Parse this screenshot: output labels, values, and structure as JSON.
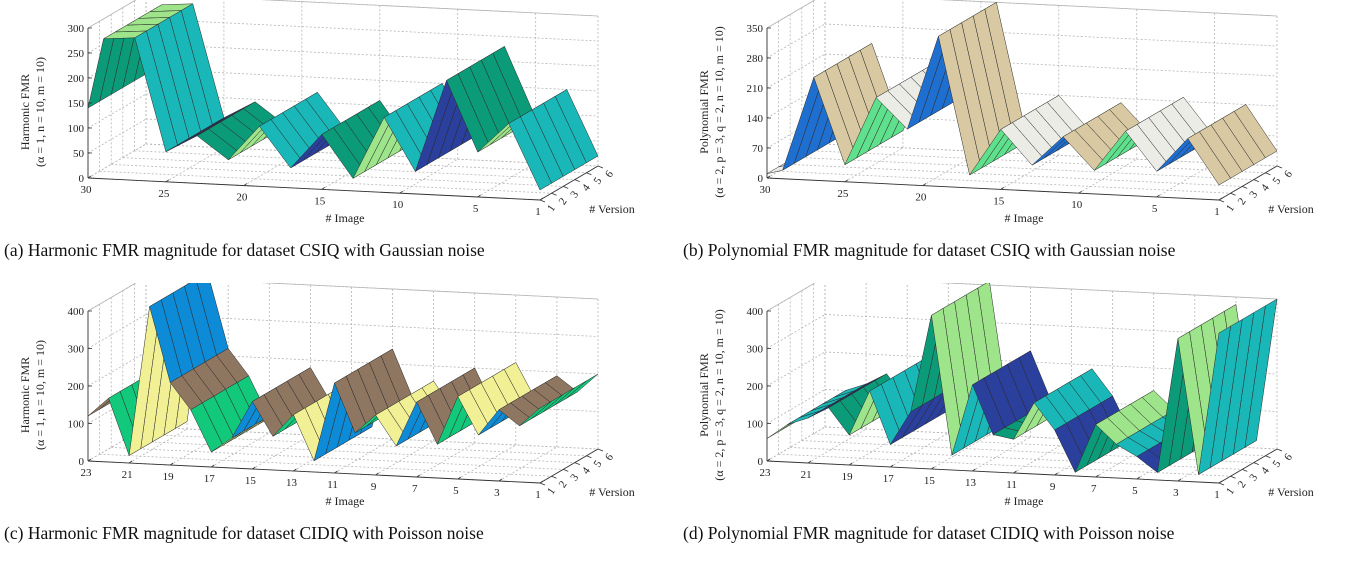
{
  "chart_data": [
    {
      "type": "surface",
      "caption_label": "(a)",
      "caption_text": "Harmonic FMR magnitude for dataset CSIQ with Gaussian noise",
      "zlabel_line1": "Harmonic FMR",
      "zlabel_line2": "(α = 1, n = 10, m = 10)",
      "xlabel": "# Image",
      "ylabel": "# Version",
      "x_ticks": [
        "30",
        "25",
        "20",
        "15",
        "10",
        "5",
        "1"
      ],
      "x_tick_values": [
        30,
        25,
        20,
        15,
        10,
        5,
        1
      ],
      "y_ticks": [
        "1",
        "2",
        "3",
        "4",
        "5",
        "6"
      ],
      "z_ticks": [
        "0",
        "50",
        "100",
        "150",
        "200",
        "250",
        "300"
      ],
      "z_range": [
        0,
        300
      ],
      "images": [
        1,
        3,
        5,
        7,
        9,
        11,
        13,
        15,
        17,
        19,
        21,
        23,
        25,
        27,
        29,
        30
      ],
      "values": [
        20,
        150,
        90,
        230,
        45,
        150,
        25,
        110,
        40,
        120,
        50,
        95,
        60,
        285,
        280,
        140
      ],
      "grid": true
    },
    {
      "type": "surface",
      "caption_label": "(b)",
      "caption_text": "Polynomial FMR magnitude for dataset CSIQ with Gaussian noise",
      "zlabel_line1": "Polynomial FMR",
      "zlabel_line2": "(α = 2, p = 3, q = 2, n = 10, m = 10)",
      "xlabel": "# Image",
      "ylabel": "# Version",
      "x_ticks": [
        "30",
        "25",
        "20",
        "15",
        "10",
        "5",
        "1"
      ],
      "x_tick_values": [
        30,
        25,
        20,
        15,
        10,
        5,
        1
      ],
      "y_ticks": [
        "1",
        "2",
        "3",
        "4",
        "5",
        "6"
      ],
      "z_ticks": [
        "0",
        "70",
        "140",
        "210",
        "280",
        "350"
      ],
      "z_range": [
        0,
        350
      ],
      "images": [
        1,
        3,
        5,
        7,
        9,
        11,
        13,
        15,
        17,
        19,
        21,
        23,
        25,
        27,
        29,
        30
      ],
      "values": [
        35,
        140,
        60,
        150,
        55,
        130,
        60,
        140,
        30,
        350,
        130,
        200,
        40,
        240,
        20,
        10
      ],
      "grid": true
    },
    {
      "type": "surface",
      "caption_label": "(c)",
      "caption_text": "Harmonic FMR magnitude for dataset CIDIQ with Poisson noise",
      "zlabel_line1": "Harmonic FMR",
      "zlabel_line2": "(α = 1, n = 10, m = 10)",
      "xlabel": "# Image",
      "ylabel": "# Version",
      "x_ticks": [
        "23",
        "21",
        "19",
        "17",
        "15",
        "13",
        "11",
        "9",
        "7",
        "5",
        "3",
        "1"
      ],
      "x_tick_values": [
        23,
        21,
        19,
        17,
        15,
        13,
        11,
        9,
        7,
        5,
        3,
        1
      ],
      "y_ticks": [
        "1",
        "2",
        "3",
        "4",
        "5",
        "6"
      ],
      "z_ticks": [
        "0",
        "100",
        "200",
        "300",
        "400"
      ],
      "z_range": [
        0,
        400
      ],
      "images": [
        1,
        2,
        3,
        4,
        5,
        6,
        7,
        8,
        9,
        10,
        11,
        12,
        13,
        14,
        15,
        16,
        17,
        18,
        19,
        20,
        21,
        22,
        23
      ],
      "values": [
        200,
        150,
        190,
        120,
        220,
        90,
        200,
        80,
        160,
        110,
        240,
        30,
        150,
        90,
        180,
        80,
        40,
        150,
        220,
        420,
        20,
        170,
        120
      ],
      "grid": true
    },
    {
      "type": "surface",
      "caption_label": "(d)",
      "caption_text": "Polynomial FMR magnitude for dataset CIDIQ with Poisson noise",
      "zlabel_line1": "Polynomial FMR",
      "zlabel_line2": "(α = 2, p = 3, q = 2, n = 10, m = 10)",
      "xlabel": "# Image",
      "ylabel": "# Version",
      "x_ticks": [
        "23",
        "21",
        "19",
        "17",
        "15",
        "13",
        "11",
        "9",
        "7",
        "5",
        "3",
        "1"
      ],
      "x_tick_values": [
        23,
        21,
        19,
        17,
        15,
        13,
        11,
        9,
        7,
        5,
        3,
        1
      ],
      "y_ticks": [
        "1",
        "2",
        "3",
        "4",
        "5",
        "6"
      ],
      "z_ticks": [
        "0",
        "100",
        "200",
        "300",
        "400"
      ],
      "z_range": [
        0,
        400
      ],
      "images": [
        1,
        2,
        3,
        4,
        5,
        6,
        7,
        8,
        9,
        10,
        11,
        12,
        13,
        14,
        15,
        16,
        17,
        18,
        19,
        20,
        21,
        22,
        23
      ],
      "values": [
        400,
        20,
        380,
        20,
        60,
        90,
        140,
        10,
        120,
        190,
        90,
        100,
        230,
        40,
        410,
        150,
        60,
        200,
        80,
        150,
        120,
        100,
        60
      ],
      "grid": true
    }
  ],
  "colors": {
    "palette": [
      "#0c9b78",
      "#12c87a",
      "#5fe08c",
      "#9de48a",
      "#f2f094",
      "#ecece6",
      "#1ab7b8",
      "#0d8bd6",
      "#1f6fd0",
      "#2b3f9c",
      "#8f7660",
      "#d8c9a3"
    ],
    "grid": "#b5b5b5",
    "edge": "#2a2a2a"
  }
}
